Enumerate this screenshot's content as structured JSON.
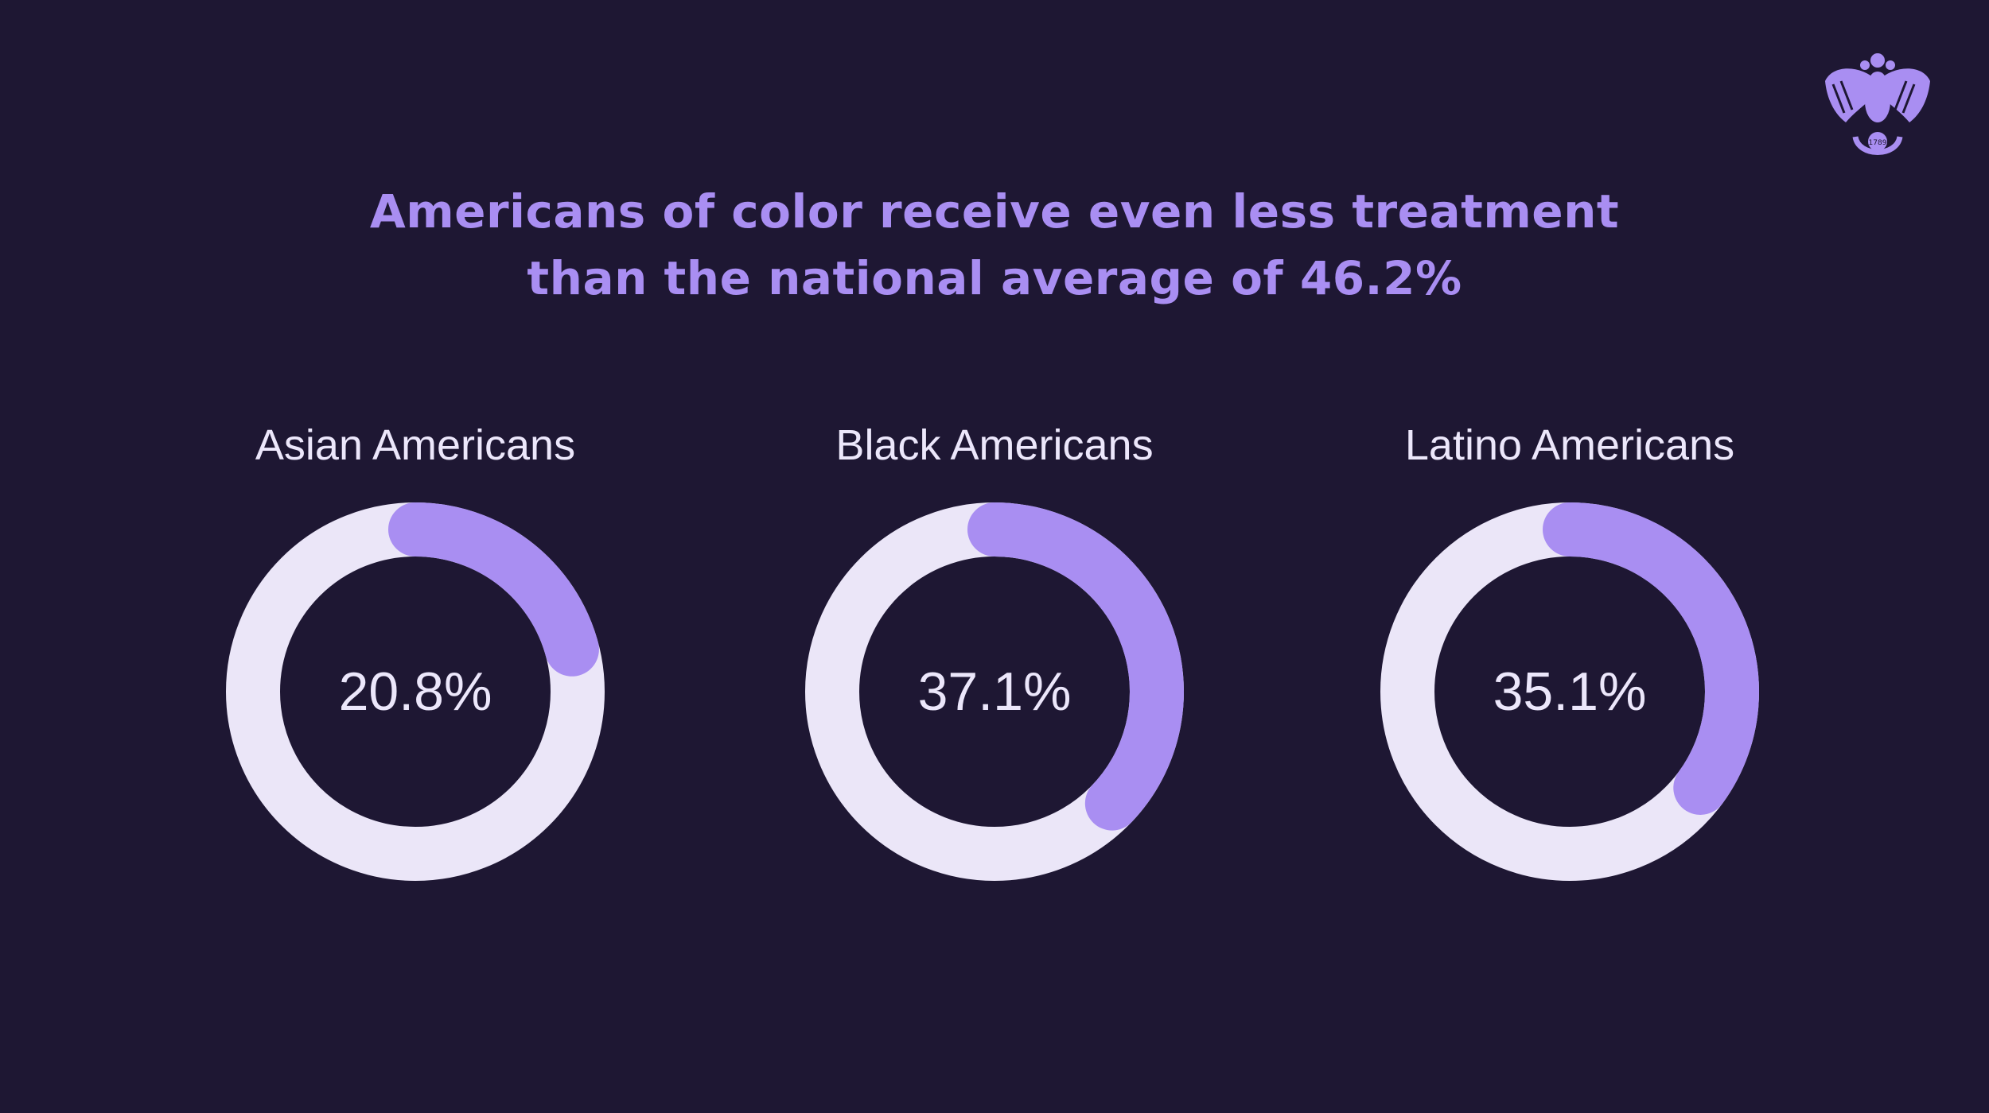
{
  "colors": {
    "background": "#1e1733",
    "title": "#a98ef2",
    "ring_track": "#ebe6f8",
    "ring_fill": "#a98ef2",
    "text": "#ece7fb"
  },
  "logo": {
    "icon": "eagle-seal-icon",
    "text": "1789"
  },
  "chart_data": {
    "type": "donut",
    "title_lines": [
      "Americans of color receive even less treatment",
      "than the national average of 46.2%"
    ],
    "national_average_percent": 46.2,
    "charts": [
      {
        "category": "Asian Americans",
        "value": 20.8,
        "label": "20.8%"
      },
      {
        "category": "Black Americans",
        "value": 37.1,
        "label": "37.1%"
      },
      {
        "category": "Latino Americans",
        "value": 35.1,
        "label": "35.1%"
      }
    ]
  }
}
